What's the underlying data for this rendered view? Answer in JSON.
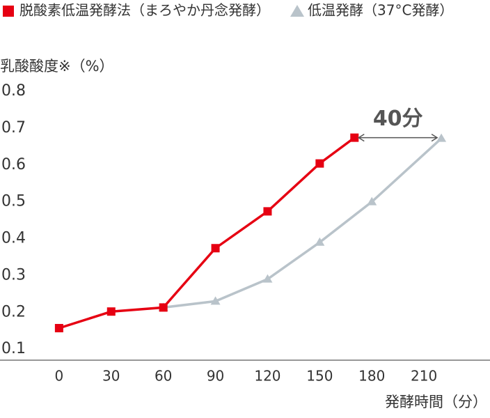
{
  "chart_data": {
    "type": "line",
    "y_label": "乳酸酸度※（%）",
    "x_label": "発酵時間（分）",
    "annotation": "40分",
    "xlim": [
      -34,
      248
    ],
    "xticks": [
      0,
      30,
      60,
      90,
      120,
      150,
      180,
      210
    ],
    "ylim": [
      0.07,
      0.8
    ],
    "yticks": [
      0.1,
      0.2,
      0.3,
      0.4,
      0.5,
      0.6,
      0.7,
      0.8
    ],
    "series": [
      {
        "name": "脱酸素低温発酵法（まろやか丹念発酵）",
        "color": "#e60012",
        "marker": "square",
        "x": [
          0,
          30,
          60,
          90,
          120,
          150,
          170
        ],
        "values": [
          0.157,
          0.202,
          0.213,
          0.374,
          0.474,
          0.604,
          0.674
        ]
      },
      {
        "name": "低温発酵（37°C発酵）",
        "color": "#b9c3ca",
        "marker": "triangle",
        "x": [
          60,
          90,
          120,
          150,
          180,
          220
        ],
        "values": [
          0.213,
          0.23,
          0.29,
          0.39,
          0.5,
          0.672
        ]
      }
    ]
  }
}
